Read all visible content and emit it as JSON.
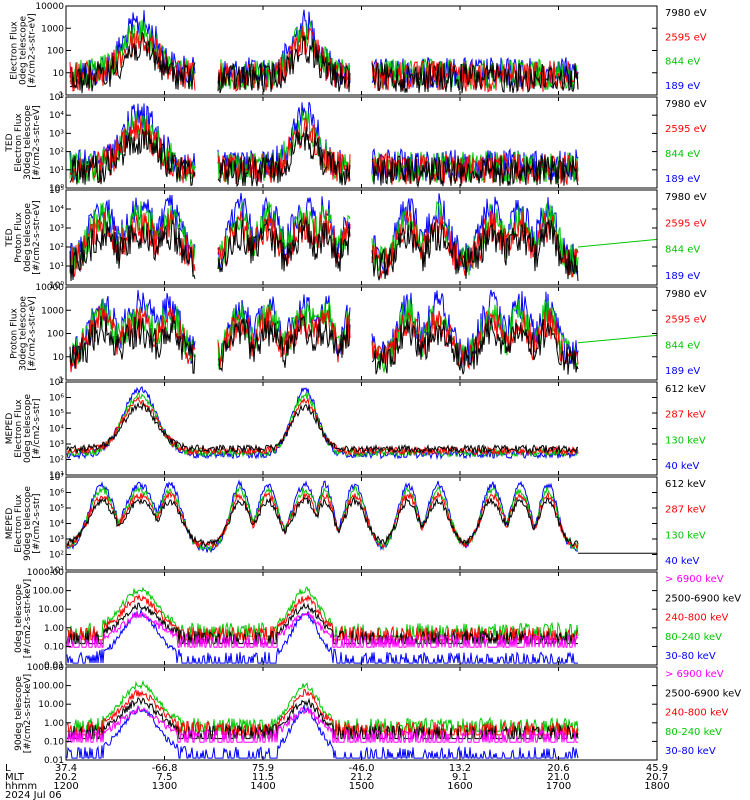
{
  "figure": {
    "date_label": "2024 Jul 06",
    "x_axis": {
      "row_names": [
        "L",
        "MLT",
        "hhmm"
      ],
      "ticks": [
        {
          "time": "1200",
          "L": "37.4",
          "MLT": "20.2"
        },
        {
          "time": "1300",
          "L": "-66.8",
          "MLT": "7.5"
        },
        {
          "time": "1400",
          "L": "75.9",
          "MLT": "11.5"
        },
        {
          "time": "1500",
          "L": "-46.0",
          "MLT": "21.2"
        },
        {
          "time": "1600",
          "L": "13.2",
          "MLT": "9.1"
        },
        {
          "time": "1700",
          "L": "20.6",
          "MLT": "21.0"
        },
        {
          "time": "1800",
          "L": "45.9",
          "MLT": "20.7"
        }
      ]
    }
  },
  "chart_data": [
    {
      "type": "line",
      "panel": 1,
      "ylabel": [
        "Electron Flux",
        "0deg telescope",
        "[#/cm2-s-str-eV]"
      ],
      "yscale": "log",
      "ylim": [
        1,
        10000
      ],
      "ytick_labels": [
        "10000",
        "1000",
        "100",
        "10",
        "1"
      ],
      "series": [
        {
          "name": "7980 eV",
          "color": "#000000"
        },
        {
          "name": "2595 eV",
          "color": "#ff0000"
        },
        {
          "name": "844 eV",
          "color": "#00c800"
        },
        {
          "name": "189 eV",
          "color": "#0000ff"
        }
      ]
    },
    {
      "type": "line",
      "panel": 2,
      "ylabel": [
        "TED",
        "Electron Flux",
        "30deg telescope",
        "[#/cm2-s-str-eV]"
      ],
      "yscale": "log",
      "ylim": [
        1,
        100000
      ],
      "ytick_labels": [
        "10⁵",
        "10⁴",
        "10³",
        "10²",
        "10¹",
        "10⁰"
      ],
      "series": [
        {
          "name": "7980 eV",
          "color": "#000000"
        },
        {
          "name": "2595 eV",
          "color": "#ff0000"
        },
        {
          "name": "844 eV",
          "color": "#00c800"
        },
        {
          "name": "189 eV",
          "color": "#0000ff"
        }
      ]
    },
    {
      "type": "line",
      "panel": 3,
      "ylabel": [
        "TED",
        "Proton Flux",
        "0deg telescope",
        "[#/cm2-s-str-eV]"
      ],
      "yscale": "log",
      "ylim": [
        1,
        100000
      ],
      "ytick_labels": [
        "10⁵",
        "10⁴",
        "10³",
        "10²",
        "10¹",
        "10⁰"
      ],
      "series": [
        {
          "name": "7980 eV",
          "color": "#000000"
        },
        {
          "name": "2595 eV",
          "color": "#ff0000"
        },
        {
          "name": "844 eV",
          "color": "#00c800"
        },
        {
          "name": "189 eV",
          "color": "#0000ff"
        }
      ]
    },
    {
      "type": "line",
      "panel": 4,
      "ylabel": [
        "Proton Flux",
        "30deg telescope",
        "[#/cm2-s-str-eV]"
      ],
      "yscale": "log",
      "ylim": [
        1,
        10000
      ],
      "ytick_labels": [
        "10000",
        "1000",
        "100",
        "10",
        "1"
      ],
      "series": [
        {
          "name": "7980 eV",
          "color": "#000000"
        },
        {
          "name": "2595 eV",
          "color": "#ff0000"
        },
        {
          "name": "844 eV",
          "color": "#00c800"
        },
        {
          "name": "189 eV",
          "color": "#0000ff"
        }
      ]
    },
    {
      "type": "line",
      "panel": 5,
      "ylabel": [
        "MEPED",
        "Electron Flux",
        "0deg telescope",
        "[#/cm2-s-str]"
      ],
      "yscale": "log",
      "ylim": [
        10,
        10000000
      ],
      "ytick_labels": [
        "10⁷",
        "10⁶",
        "10⁵",
        "10⁴",
        "10³",
        "10²",
        "10¹"
      ],
      "series": [
        {
          "name": "612 keV",
          "color": "#000000"
        },
        {
          "name": "287 keV",
          "color": "#ff0000"
        },
        {
          "name": "130 keV",
          "color": "#00c800"
        },
        {
          "name": "40 keV",
          "color": "#0000ff"
        }
      ]
    },
    {
      "type": "line",
      "panel": 6,
      "ylabel": [
        "MEPED",
        "Electron Flux",
        "90deg telescope",
        "[#/cm2-s-str]"
      ],
      "yscale": "log",
      "ylim": [
        10,
        10000000
      ],
      "ytick_labels": [
        "10⁷",
        "10⁶",
        "10⁵",
        "10⁴",
        "10³",
        "10²",
        "10¹"
      ],
      "series": [
        {
          "name": "612 keV",
          "color": "#000000"
        },
        {
          "name": "287 keV",
          "color": "#ff0000"
        },
        {
          "name": "130 keV",
          "color": "#00c800"
        },
        {
          "name": "40 keV",
          "color": "#0000ff"
        }
      ]
    },
    {
      "type": "line",
      "panel": 7,
      "ylabel": [
        "0deg telescope",
        "[#/cm2-s-str-keV]"
      ],
      "yscale": "log",
      "ylim": [
        0.01,
        1000
      ],
      "ytick_labels": [
        "1000.00",
        "100.00",
        "10.00",
        "1.00",
        "0.10",
        "0.01"
      ],
      "series": [
        {
          "name": "> 6900 keV",
          "color": "#ff00ff"
        },
        {
          "name": "2500-6900 keV",
          "color": "#000000"
        },
        {
          "name": "240-800 keV",
          "color": "#ff0000"
        },
        {
          "name": "80-240 keV",
          "color": "#00c800"
        },
        {
          "name": "30-80 keV",
          "color": "#0000ff"
        }
      ]
    },
    {
      "type": "line",
      "panel": 8,
      "ylabel": [
        "90deg telescope",
        "[#/cm2-s-str-keV]"
      ],
      "yscale": "log",
      "ylim": [
        0.01,
        1000
      ],
      "ytick_labels": [
        "1000.00",
        "100.00",
        "10.00",
        "1.00",
        "0.10",
        "0.01"
      ],
      "series": [
        {
          "name": "> 6900 keV",
          "color": "#ff00ff"
        },
        {
          "name": "2500-6900 keV",
          "color": "#000000"
        },
        {
          "name": "240-800 keV",
          "color": "#ff0000"
        },
        {
          "name": "80-240 keV",
          "color": "#00c800"
        },
        {
          "name": "30-80 keV",
          "color": "#0000ff"
        }
      ]
    }
  ]
}
